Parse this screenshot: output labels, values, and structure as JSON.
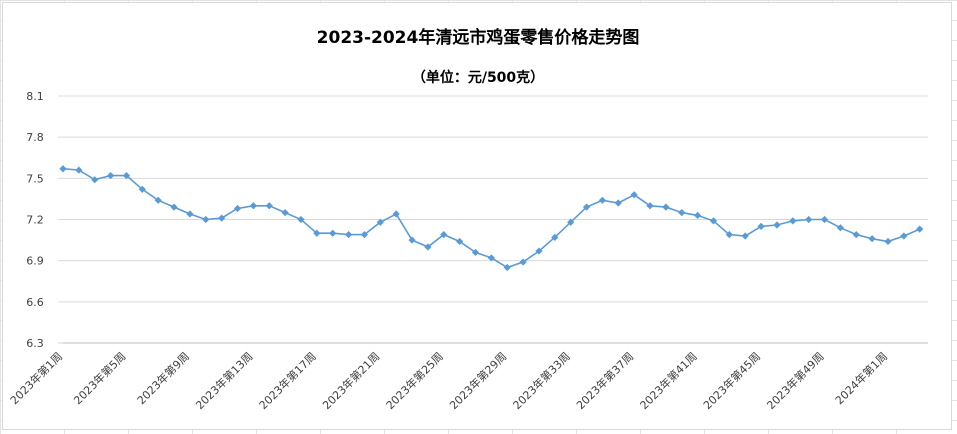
{
  "chart_data": {
    "type": "line",
    "title": "2023-2024年清远市鸡蛋零售价格走势图",
    "subtitle": "（单位：元/500克）",
    "xlabel": "",
    "ylabel": "",
    "ylim": [
      6.3,
      8.1
    ],
    "yticks": [
      "8.1",
      "7.8",
      "7.5",
      "7.2",
      "6.9",
      "6.6",
      "6.3"
    ],
    "grid": true,
    "legend": "none",
    "series_color": "#5b9bd5",
    "x_labels": [
      {
        "index": 0,
        "label": "2023年第1周"
      },
      {
        "index": 4,
        "label": "2023年第5周"
      },
      {
        "index": 8,
        "label": "2023年第9周"
      },
      {
        "index": 12,
        "label": "2023年第13周"
      },
      {
        "index": 16,
        "label": "2023年第17周"
      },
      {
        "index": 20,
        "label": "2023年第21周"
      },
      {
        "index": 24,
        "label": "2023年第25周"
      },
      {
        "index": 28,
        "label": "2023年第29周"
      },
      {
        "index": 32,
        "label": "2023年第33周"
      },
      {
        "index": 36,
        "label": "2023年第37周"
      },
      {
        "index": 40,
        "label": "2023年第41周"
      },
      {
        "index": 44,
        "label": "2023年第45周"
      },
      {
        "index": 48,
        "label": "2023年第49周"
      },
      {
        "index": 52,
        "label": "2024年第1周"
      }
    ],
    "values": [
      7.57,
      7.56,
      7.49,
      7.52,
      7.52,
      7.42,
      7.34,
      7.29,
      7.24,
      7.2,
      7.21,
      7.28,
      7.3,
      7.3,
      7.25,
      7.2,
      7.1,
      7.1,
      7.09,
      7.09,
      7.18,
      7.24,
      7.05,
      7.0,
      7.09,
      7.04,
      6.96,
      6.92,
      6.85,
      6.89,
      6.97,
      7.07,
      7.18,
      7.29,
      7.34,
      7.32,
      7.38,
      7.3,
      7.29,
      7.25,
      7.23,
      7.19,
      7.09,
      7.08,
      7.15,
      7.16,
      7.19,
      7.2,
      7.2,
      7.14,
      7.09,
      7.06,
      7.04,
      7.08,
      7.13
    ]
  }
}
